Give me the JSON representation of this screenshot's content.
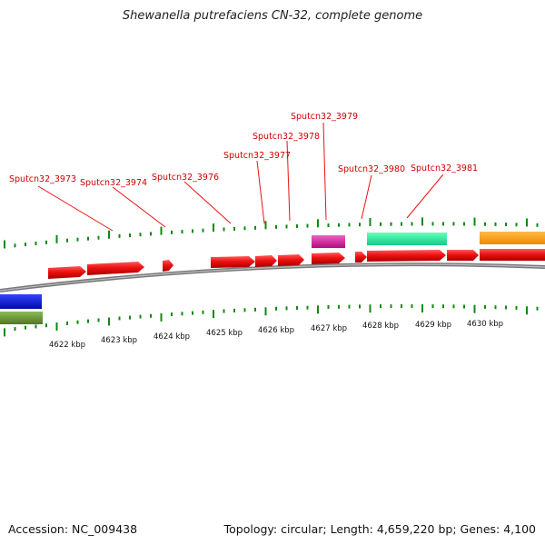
{
  "title": "Shewanella putrefaciens CN-32, complete genome",
  "footer": {
    "accession": "Accession: NC_009438",
    "summary": "Topology: circular; Length: 4,659,220 bp; Genes: 4,100"
  },
  "colors": {
    "gene_red": "#ee1111",
    "rna_magenta": "#dd1199",
    "feature_teal": "#22ee99",
    "feature_orange": "#ff9900",
    "feature_blue": "#0011dd",
    "feature_olive": "#669933",
    "tick_green": "#118811",
    "label_red": "#cc0000",
    "backbone_gray": "#888888"
  },
  "gene_labels": [
    "Sputcn32_3973",
    "Sputcn32_3974",
    "Sputcn32_3976",
    "Sputcn32_3977",
    "Sputcn32_3978",
    "Sputcn32_3979",
    "Sputcn32_3980",
    "Sputcn32_3981"
  ],
  "kbp_ticks": [
    "4622 kbp",
    "4623 kbp",
    "4624 kbp",
    "4625 kbp",
    "4626 kbp",
    "4627 kbp",
    "4628 kbp",
    "4629 kbp",
    "4630 kbp"
  ]
}
